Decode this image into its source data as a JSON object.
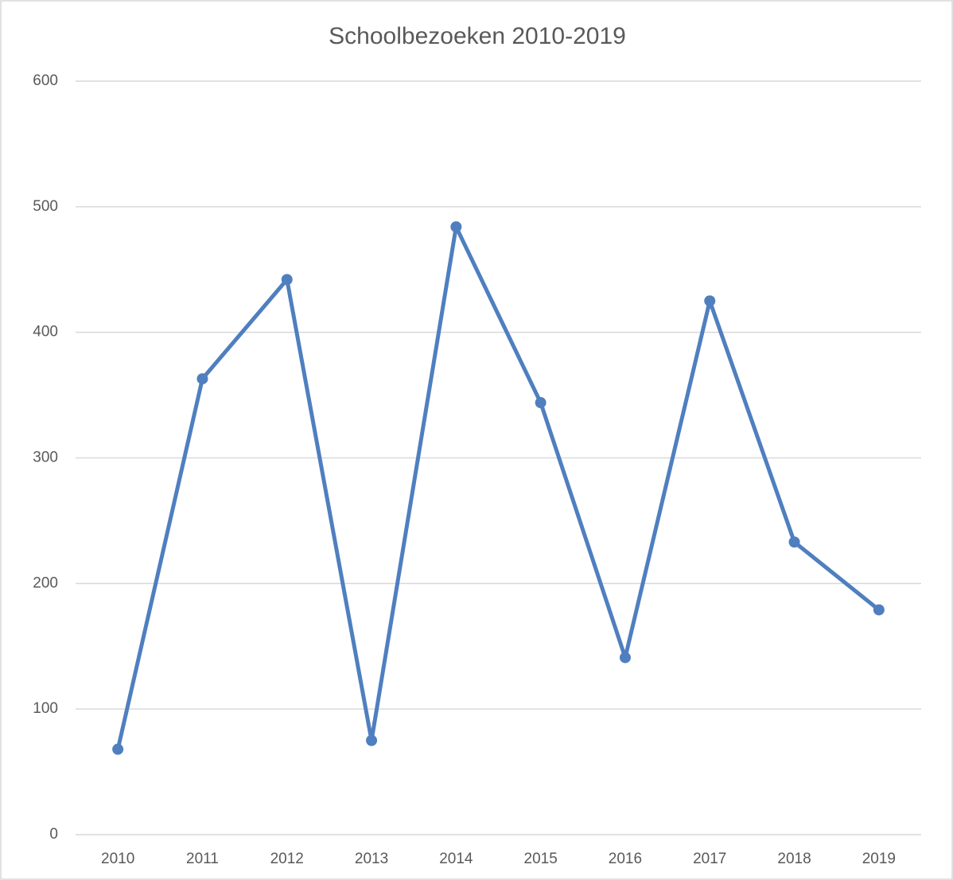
{
  "chart_data": {
    "type": "line",
    "title": "Schoolbezoeken 2010-2019",
    "categories": [
      "2010",
      "2011",
      "2012",
      "2013",
      "2014",
      "2015",
      "2016",
      "2017",
      "2018",
      "2019"
    ],
    "values": [
      68,
      363,
      442,
      75,
      484,
      344,
      141,
      425,
      233,
      179
    ],
    "color": "#4f7fbf",
    "ylim": [
      0,
      600
    ],
    "yticks": [
      0,
      100,
      200,
      300,
      400,
      500,
      600
    ],
    "grid": true
  }
}
